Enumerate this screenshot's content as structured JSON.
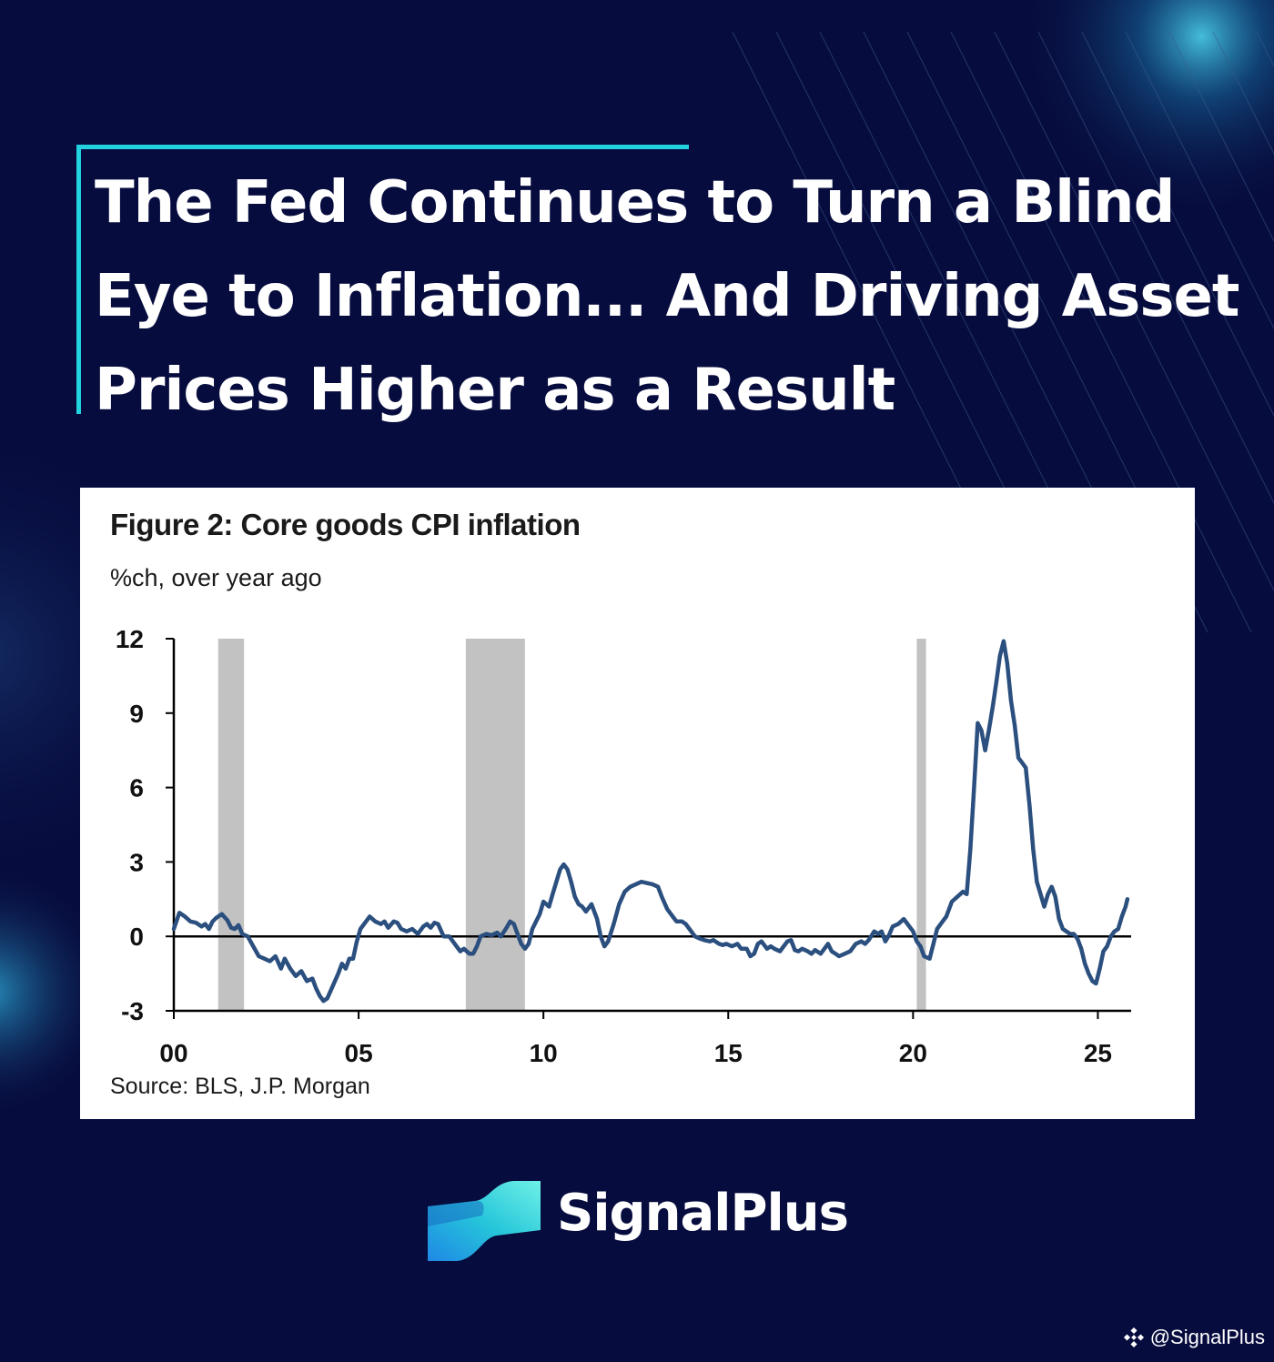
{
  "header": {
    "title_lines": [
      "The Fed Continues to Turn a Blind",
      "Eye to Inflation... And Driving Asset",
      "Prices Higher as a Result"
    ]
  },
  "figure": {
    "title": "Figure 2: Core goods CPI inflation",
    "subtitle": "%ch, over year ago",
    "source": "Source: BLS, J.P. Morgan"
  },
  "chart_data": {
    "type": "line",
    "title": "Figure 2: Core goods CPI inflation",
    "ylabel": "%ch, over year ago",
    "xlabel": "",
    "xlim": [
      2000,
      2025.9
    ],
    "ylim": [
      -3,
      12
    ],
    "x_ticks": [
      {
        "value": 2000,
        "label": "00"
      },
      {
        "value": 2005,
        "label": "05"
      },
      {
        "value": 2010,
        "label": "10"
      },
      {
        "value": 2015,
        "label": "15"
      },
      {
        "value": 2020,
        "label": "20"
      },
      {
        "value": 2025,
        "label": "25"
      }
    ],
    "y_ticks": [
      -3,
      0,
      3,
      6,
      9,
      12
    ],
    "zero_line": true,
    "grid": false,
    "legend": "none",
    "shaded_periods": [
      [
        2001.2,
        2001.9
      ],
      [
        2007.9,
        2009.5
      ],
      [
        2020.1,
        2020.35
      ]
    ],
    "series": [
      {
        "color": "#2b4f7e",
        "points": [
          [
            2000.0,
            0.3
          ],
          [
            2000.15,
            0.95
          ],
          [
            2000.3,
            0.8
          ],
          [
            2000.45,
            0.6
          ],
          [
            2000.6,
            0.55
          ],
          [
            2000.75,
            0.4
          ],
          [
            2000.85,
            0.5
          ],
          [
            2000.95,
            0.3
          ],
          [
            2001.05,
            0.6
          ],
          [
            2001.15,
            0.75
          ],
          [
            2001.3,
            0.9
          ],
          [
            2001.45,
            0.65
          ],
          [
            2001.55,
            0.35
          ],
          [
            2001.65,
            0.3
          ],
          [
            2001.75,
            0.45
          ],
          [
            2001.85,
            0.1
          ],
          [
            2002.0,
            0.0
          ],
          [
            2002.15,
            -0.4
          ],
          [
            2002.3,
            -0.8
          ],
          [
            2002.45,
            -0.9
          ],
          [
            2002.6,
            -1.0
          ],
          [
            2002.75,
            -0.8
          ],
          [
            2002.9,
            -1.3
          ],
          [
            2003.0,
            -0.9
          ],
          [
            2003.15,
            -1.3
          ],
          [
            2003.3,
            -1.6
          ],
          [
            2003.45,
            -1.4
          ],
          [
            2003.6,
            -1.8
          ],
          [
            2003.75,
            -1.7
          ],
          [
            2003.85,
            -2.1
          ],
          [
            2003.95,
            -2.4
          ],
          [
            2004.05,
            -2.6
          ],
          [
            2004.15,
            -2.5
          ],
          [
            2004.3,
            -2.0
          ],
          [
            2004.45,
            -1.5
          ],
          [
            2004.55,
            -1.1
          ],
          [
            2004.65,
            -1.3
          ],
          [
            2004.75,
            -0.9
          ],
          [
            2004.85,
            -0.9
          ],
          [
            2004.95,
            -0.2
          ],
          [
            2005.05,
            0.3
          ],
          [
            2005.2,
            0.6
          ],
          [
            2005.3,
            0.8
          ],
          [
            2005.45,
            0.6
          ],
          [
            2005.6,
            0.5
          ],
          [
            2005.7,
            0.6
          ],
          [
            2005.8,
            0.35
          ],
          [
            2005.95,
            0.6
          ],
          [
            2006.05,
            0.55
          ],
          [
            2006.15,
            0.3
          ],
          [
            2006.3,
            0.2
          ],
          [
            2006.45,
            0.3
          ],
          [
            2006.6,
            0.1
          ],
          [
            2006.75,
            0.4
          ],
          [
            2006.85,
            0.5
          ],
          [
            2006.95,
            0.35
          ],
          [
            2007.05,
            0.55
          ],
          [
            2007.15,
            0.5
          ],
          [
            2007.3,
            0.0
          ],
          [
            2007.45,
            0.0
          ],
          [
            2007.55,
            -0.2
          ],
          [
            2007.65,
            -0.4
          ],
          [
            2007.75,
            -0.6
          ],
          [
            2007.85,
            -0.5
          ],
          [
            2008.0,
            -0.7
          ],
          [
            2008.1,
            -0.7
          ],
          [
            2008.2,
            -0.4
          ],
          [
            2008.3,
            0.0
          ],
          [
            2008.45,
            0.1
          ],
          [
            2008.6,
            0.05
          ],
          [
            2008.75,
            0.15
          ],
          [
            2008.85,
            0.0
          ],
          [
            2009.0,
            0.35
          ],
          [
            2009.1,
            0.6
          ],
          [
            2009.2,
            0.5
          ],
          [
            2009.3,
            0.1
          ],
          [
            2009.4,
            -0.3
          ],
          [
            2009.5,
            -0.5
          ],
          [
            2009.6,
            -0.3
          ],
          [
            2009.7,
            0.3
          ],
          [
            2009.8,
            0.6
          ],
          [
            2009.9,
            0.9
          ],
          [
            2010.0,
            1.4
          ],
          [
            2010.15,
            1.2
          ],
          [
            2010.25,
            1.7
          ],
          [
            2010.35,
            2.2
          ],
          [
            2010.45,
            2.7
          ],
          [
            2010.55,
            2.9
          ],
          [
            2010.65,
            2.7
          ],
          [
            2010.75,
            2.2
          ],
          [
            2010.85,
            1.6
          ],
          [
            2010.95,
            1.3
          ],
          [
            2011.05,
            1.2
          ],
          [
            2011.15,
            1.0
          ],
          [
            2011.3,
            1.3
          ],
          [
            2011.45,
            0.7
          ],
          [
            2011.55,
            0.0
          ],
          [
            2011.65,
            -0.4
          ],
          [
            2011.75,
            -0.2
          ],
          [
            2011.9,
            0.5
          ],
          [
            2012.05,
            1.3
          ],
          [
            2012.2,
            1.8
          ],
          [
            2012.35,
            2.0
          ],
          [
            2012.5,
            2.1
          ],
          [
            2012.65,
            2.2
          ],
          [
            2012.8,
            2.15
          ],
          [
            2012.95,
            2.1
          ],
          [
            2013.1,
            2.0
          ],
          [
            2013.2,
            1.6
          ],
          [
            2013.35,
            1.1
          ],
          [
            2013.5,
            0.8
          ],
          [
            2013.6,
            0.6
          ],
          [
            2013.75,
            0.6
          ],
          [
            2013.85,
            0.5
          ],
          [
            2013.95,
            0.3
          ],
          [
            2014.1,
            0.0
          ],
          [
            2014.25,
            -0.1
          ],
          [
            2014.35,
            -0.15
          ],
          [
            2014.5,
            -0.2
          ],
          [
            2014.6,
            -0.15
          ],
          [
            2014.75,
            -0.3
          ],
          [
            2014.85,
            -0.35
          ],
          [
            2014.95,
            -0.3
          ],
          [
            2015.1,
            -0.4
          ],
          [
            2015.25,
            -0.3
          ],
          [
            2015.35,
            -0.5
          ],
          [
            2015.5,
            -0.5
          ],
          [
            2015.6,
            -0.8
          ],
          [
            2015.7,
            -0.7
          ],
          [
            2015.8,
            -0.3
          ],
          [
            2015.9,
            -0.2
          ],
          [
            2016.05,
            -0.5
          ],
          [
            2016.15,
            -0.4
          ],
          [
            2016.25,
            -0.5
          ],
          [
            2016.4,
            -0.6
          ],
          [
            2016.5,
            -0.4
          ],
          [
            2016.6,
            -0.2
          ],
          [
            2016.7,
            -0.15
          ],
          [
            2016.8,
            -0.55
          ],
          [
            2016.9,
            -0.6
          ],
          [
            2017.0,
            -0.5
          ],
          [
            2017.15,
            -0.6
          ],
          [
            2017.25,
            -0.7
          ],
          [
            2017.35,
            -0.55
          ],
          [
            2017.5,
            -0.7
          ],
          [
            2017.6,
            -0.5
          ],
          [
            2017.7,
            -0.3
          ],
          [
            2017.8,
            -0.6
          ],
          [
            2017.9,
            -0.7
          ],
          [
            2018.0,
            -0.8
          ],
          [
            2018.15,
            -0.7
          ],
          [
            2018.3,
            -0.6
          ],
          [
            2018.45,
            -0.3
          ],
          [
            2018.6,
            -0.2
          ],
          [
            2018.7,
            -0.3
          ],
          [
            2018.8,
            -0.15
          ],
          [
            2018.95,
            0.2
          ],
          [
            2019.05,
            0.1
          ],
          [
            2019.15,
            0.2
          ],
          [
            2019.25,
            -0.2
          ],
          [
            2019.35,
            0.05
          ],
          [
            2019.45,
            0.4
          ],
          [
            2019.6,
            0.5
          ],
          [
            2019.75,
            0.7
          ],
          [
            2019.9,
            0.4
          ],
          [
            2020.0,
            0.2
          ],
          [
            2020.1,
            -0.2
          ],
          [
            2020.2,
            -0.4
          ],
          [
            2020.3,
            -0.8
          ],
          [
            2020.45,
            -0.9
          ],
          [
            2020.55,
            -0.3
          ],
          [
            2020.65,
            0.3
          ],
          [
            2020.8,
            0.6
          ],
          [
            2020.9,
            0.8
          ],
          [
            2021.05,
            1.4
          ],
          [
            2021.2,
            1.6
          ],
          [
            2021.35,
            1.8
          ],
          [
            2021.45,
            1.7
          ],
          [
            2021.55,
            3.5
          ],
          [
            2021.65,
            6.0
          ],
          [
            2021.75,
            8.6
          ],
          [
            2021.85,
            8.3
          ],
          [
            2021.95,
            7.5
          ],
          [
            2022.05,
            8.3
          ],
          [
            2022.15,
            9.2
          ],
          [
            2022.25,
            10.2
          ],
          [
            2022.35,
            11.3
          ],
          [
            2022.45,
            11.9
          ],
          [
            2022.55,
            11.0
          ],
          [
            2022.65,
            9.5
          ],
          [
            2022.75,
            8.5
          ],
          [
            2022.85,
            7.2
          ],
          [
            2022.95,
            7.0
          ],
          [
            2023.05,
            6.8
          ],
          [
            2023.15,
            5.3
          ],
          [
            2023.25,
            3.5
          ],
          [
            2023.35,
            2.2
          ],
          [
            2023.45,
            1.7
          ],
          [
            2023.55,
            1.2
          ],
          [
            2023.65,
            1.7
          ],
          [
            2023.75,
            2.0
          ],
          [
            2023.85,
            1.6
          ],
          [
            2023.95,
            0.7
          ],
          [
            2024.05,
            0.3
          ],
          [
            2024.15,
            0.2
          ],
          [
            2024.25,
            0.1
          ],
          [
            2024.35,
            0.1
          ],
          [
            2024.45,
            -0.1
          ],
          [
            2024.55,
            -0.5
          ],
          [
            2024.65,
            -1.1
          ],
          [
            2024.75,
            -1.5
          ],
          [
            2024.85,
            -1.8
          ],
          [
            2024.95,
            -1.9
          ],
          [
            2025.05,
            -1.3
          ],
          [
            2025.15,
            -0.6
          ],
          [
            2025.25,
            -0.4
          ],
          [
            2025.35,
            0.0
          ],
          [
            2025.45,
            0.2
          ],
          [
            2025.55,
            0.3
          ],
          [
            2025.65,
            0.8
          ],
          [
            2025.75,
            1.2
          ],
          [
            2025.8,
            1.5
          ]
        ]
      }
    ]
  },
  "brand": {
    "name": "SignalPlus",
    "watermark": "@SignalPlus",
    "colors": {
      "accent": "#22d3df",
      "background": "#070c3e",
      "line": "#2b4f7e",
      "shade": "#c2c2c2"
    }
  },
  "icons": {
    "logo": "signalplus-wave-logo",
    "watermark": "binance-square-icon"
  }
}
